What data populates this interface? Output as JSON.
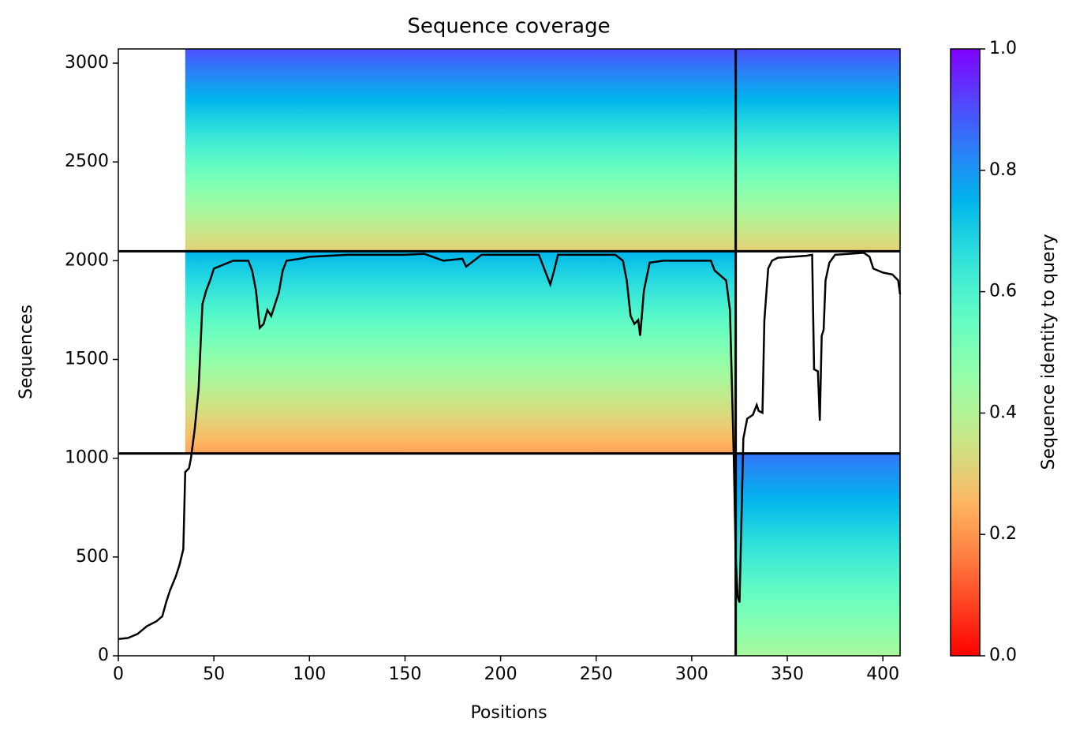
{
  "chart_data": {
    "type": "coverage",
    "title": "Sequence coverage",
    "xlabel": "Positions",
    "ylabel": "Sequences",
    "xlim": [
      0,
      409
    ],
    "ylim": [
      0,
      3072
    ],
    "xticks": [
      0,
      50,
      100,
      150,
      200,
      250,
      300,
      350,
      400
    ],
    "yticks": [
      0,
      500,
      1000,
      1500,
      2000,
      2500,
      3000
    ],
    "blocks": [
      {
        "x": [
          35,
          409
        ],
        "y": [
          2048,
          3072
        ],
        "identity": [
          0.3,
          0.9
        ]
      },
      {
        "x": [
          35,
          323
        ],
        "y": [
          1024,
          2048
        ],
        "identity": [
          0.22,
          0.75
        ]
      },
      {
        "x": [
          323,
          409
        ],
        "y": [
          0,
          1024
        ],
        "identity": [
          0.42,
          0.85
        ]
      }
    ],
    "boundaries": {
      "x": [
        323
      ],
      "y": [
        1024,
        2048
      ]
    },
    "x": [
      0,
      5,
      10,
      15,
      20,
      23,
      25,
      27,
      30,
      32,
      34,
      35,
      37,
      38,
      40,
      42,
      44,
      46,
      48,
      50,
      55,
      60,
      68,
      70,
      72,
      74,
      76,
      78,
      80,
      82,
      84,
      86,
      88,
      95,
      100,
      120,
      150,
      160,
      170,
      180,
      182,
      190,
      200,
      220,
      224,
      226,
      228,
      230,
      260,
      264,
      266,
      268,
      270,
      272,
      273,
      275,
      278,
      285,
      300,
      310,
      312,
      318,
      320,
      322,
      323,
      324,
      325,
      327,
      329,
      332,
      334,
      335,
      337,
      338,
      340,
      342,
      345,
      360,
      363,
      364,
      366,
      367,
      368,
      369,
      370,
      372,
      375,
      390,
      393,
      395,
      400,
      405,
      408,
      410
    ],
    "series": [
      {
        "color": "#000000",
        "values": [
          85,
          90,
          110,
          150,
          175,
          200,
          270,
          330,
          400,
          460,
          540,
          930,
          950,
          1000,
          1150,
          1350,
          1780,
          1850,
          1900,
          1960,
          1980,
          2000,
          2000,
          1950,
          1850,
          1660,
          1680,
          1750,
          1720,
          1780,
          1840,
          1950,
          2000,
          2010,
          2020,
          2030,
          2030,
          2035,
          2000,
          2010,
          1970,
          2030,
          2030,
          2030,
          1930,
          1880,
          1950,
          2030,
          2030,
          2000,
          1900,
          1720,
          1680,
          1700,
          1620,
          1850,
          1990,
          2000,
          2000,
          2000,
          1950,
          1900,
          1750,
          1000,
          500,
          300,
          270,
          1100,
          1200,
          1220,
          1270,
          1240,
          1230,
          1700,
          1960,
          2000,
          2015,
          2025,
          2030,
          1450,
          1440,
          1190,
          1620,
          1650,
          1900,
          1990,
          2030,
          2040,
          2020,
          1960,
          1940,
          1930,
          1900,
          1830
        ]
      }
    ],
    "colorbar": {
      "label": "Sequence identity to query",
      "ylim": [
        0,
        1
      ],
      "yticks": [
        {
          "value": 0,
          "label": "0.0"
        },
        {
          "value": 0.2,
          "label": "0.2"
        },
        {
          "value": 0.4,
          "label": "0.4"
        },
        {
          "value": 0.6,
          "label": "0.6"
        },
        {
          "value": 0.8,
          "label": "0.8"
        },
        {
          "value": 1,
          "label": "1.0"
        }
      ]
    }
  }
}
